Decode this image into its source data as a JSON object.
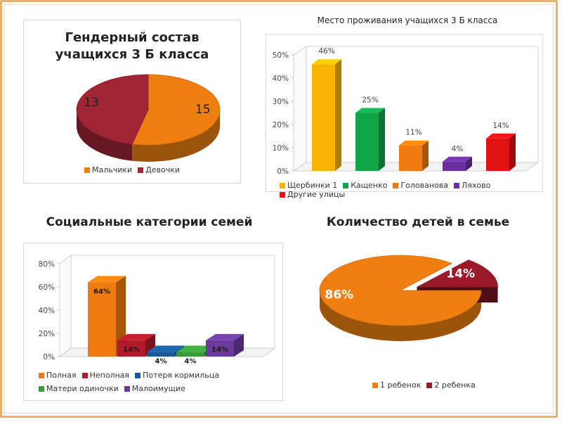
{
  "chart_data": [
    {
      "type": "pie",
      "title": "Гендерный состав учащихся 3 Б класса",
      "title_lines": [
        "Гендерный состав",
        "учащихся 3 Б класса"
      ],
      "categories": [
        "Мальчики",
        "Девочки"
      ],
      "values": [
        15,
        13
      ],
      "value_labels": [
        "15",
        "13"
      ],
      "colors": [
        "#f07f12",
        "#a02535"
      ],
      "legend_position": "bottom"
    },
    {
      "type": "bar",
      "title": "Место проживания учащихся 3 Б класса",
      "categories": [
        "Щербинки 1",
        "Кащенко",
        "Голованова",
        "Ляхово",
        "Другие улицы"
      ],
      "values": [
        46,
        25,
        11,
        4,
        14
      ],
      "value_labels": [
        "46%",
        "25%",
        "11%",
        "4%",
        "14%"
      ],
      "colors": [
        "#f7b500",
        "#11a54a",
        "#ef7a10",
        "#6a2fa0",
        "#e21212"
      ],
      "yticks": [
        "0%",
        "10%",
        "20%",
        "30%",
        "40%",
        "50%"
      ],
      "ylim": [
        0,
        50
      ],
      "grid": false,
      "legend_position": "bottom"
    },
    {
      "type": "bar",
      "title": "Социальные категории семей",
      "categories": [
        "Полная",
        "Неполная",
        "Потеря кормильца",
        "Матери одиночки",
        "Малоимущие"
      ],
      "values": [
        64,
        14,
        4,
        4,
        14
      ],
      "value_labels": [
        "64%",
        "14%",
        "4%",
        "4%",
        "14%"
      ],
      "colors": [
        "#ef7a10",
        "#b01a2a",
        "#1a5a9a",
        "#3a9a3a",
        "#6a3a9a"
      ],
      "yticks": [
        "0%",
        "20%",
        "40%",
        "60%",
        "80%"
      ],
      "ylim": [
        0,
        80
      ],
      "grid": false,
      "legend_position": "bottom"
    },
    {
      "type": "pie",
      "title": "Количество детей в семье",
      "categories": [
        "1 ребенок",
        "2 ребенка"
      ],
      "values": [
        86,
        14
      ],
      "value_labels": [
        "86%",
        "14%"
      ],
      "colors": [
        "#f07f12",
        "#9a1a2a"
      ],
      "legend_position": "bottom"
    }
  ]
}
